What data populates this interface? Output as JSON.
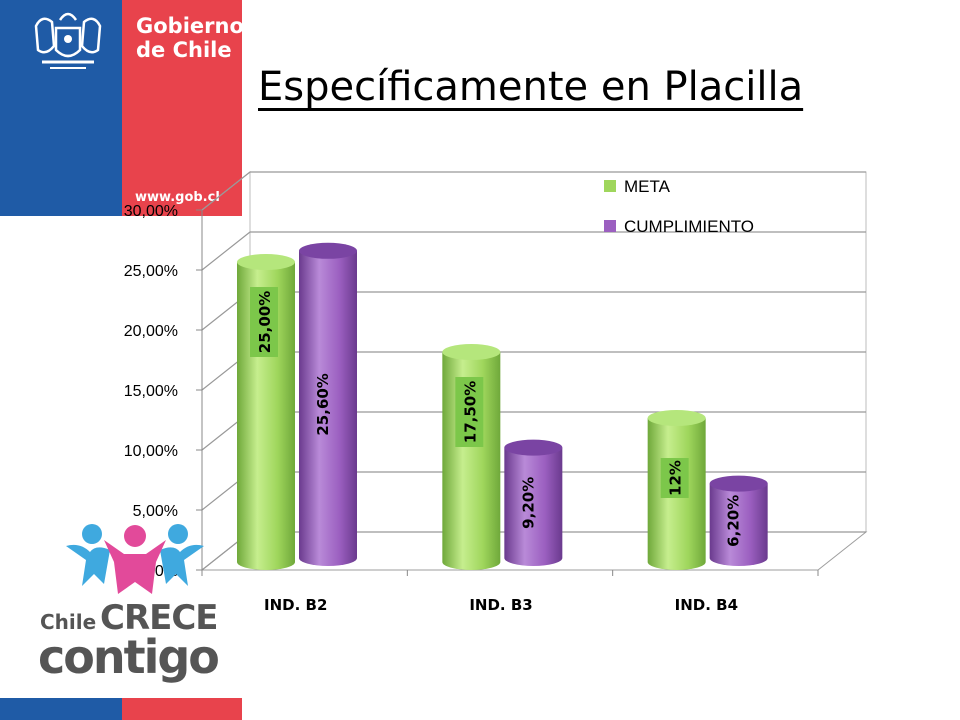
{
  "header": {
    "org_name": "Gobierno\nde Chile",
    "url": "www.gob.cl",
    "page_title": "Específicamente en Placilla"
  },
  "logo": {
    "chile": "Chile",
    "crece": "CRECE",
    "contigo": "contigo"
  },
  "colors": {
    "meta": "#9fd65c",
    "cumplimiento": "#9b5fc0",
    "gov_blue": "#1f5ba6",
    "gov_red": "#e8434c",
    "label_bg": "#7cc74a"
  },
  "chart_data": {
    "type": "bar",
    "categories": [
      "IND. B2",
      "IND. B3",
      "IND. B4"
    ],
    "series": [
      {
        "name": "META",
        "values": [
          25.0,
          17.5,
          12.0
        ],
        "labels": [
          "25,00%",
          "17,50%",
          "12%"
        ]
      },
      {
        "name": "CUMPLIMIENTO",
        "values": [
          25.6,
          9.2,
          6.2
        ],
        "labels": [
          "25,60%",
          "9,20%",
          "6,20%"
        ]
      }
    ],
    "ylim": [
      0,
      30
    ],
    "yticks": [
      "0,00%",
      "5,00%",
      "10,00%",
      "15,00%",
      "20,00%",
      "25,00%",
      "30,00%"
    ],
    "grid": true,
    "legend": "top-right"
  }
}
